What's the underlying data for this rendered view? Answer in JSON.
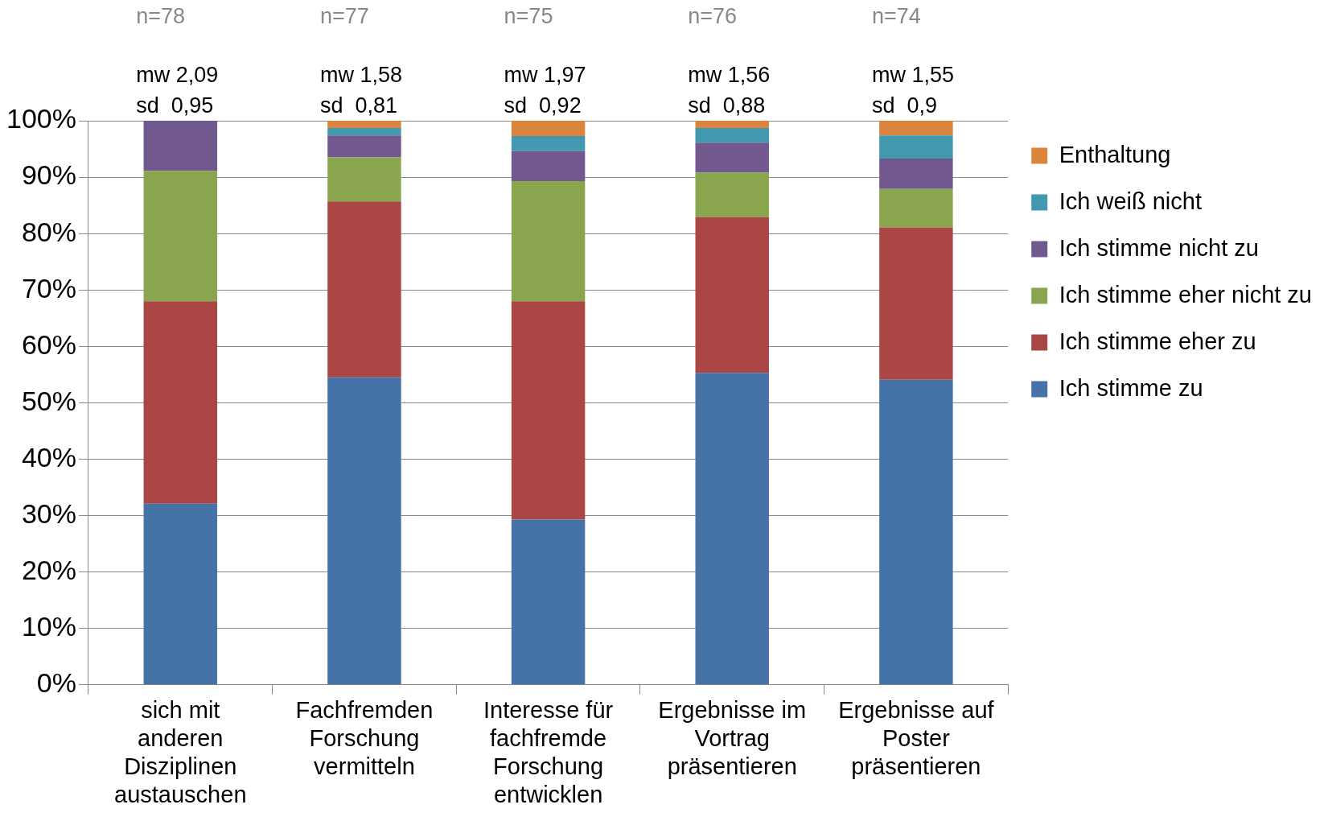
{
  "chart_data": {
    "type": "bar",
    "stacked": true,
    "categories": [
      "sich mit anderen Disziplinen austauschen",
      "Fachfremden Forschung vermitteln",
      "Interesse für fachfremde Forschung entwicklen",
      "Ergebnisse im Vortrag präsentieren",
      "Ergebnisse auf Poster präsentieren"
    ],
    "series": [
      {
        "name": "Ich stimme zu",
        "color": "#4572a7",
        "values": [
          32.1,
          54.5,
          29.3,
          55.3,
          54.1
        ]
      },
      {
        "name": "Ich stimme eher zu",
        "color": "#aa4643",
        "values": [
          35.9,
          31.2,
          38.7,
          27.6,
          27.0
        ]
      },
      {
        "name": "Ich stimme eher nicht zu",
        "color": "#89a54e",
        "values": [
          23.1,
          7.8,
          21.3,
          7.9,
          6.8
        ]
      },
      {
        "name": "Ich stimme nicht zu",
        "color": "#71588f",
        "values": [
          8.9,
          3.9,
          5.3,
          5.3,
          5.4
        ]
      },
      {
        "name": "Ich weiß nicht",
        "color": "#4198af",
        "values": [
          0,
          1.3,
          2.7,
          2.6,
          4.1
        ]
      },
      {
        "name": "Enthaltung",
        "color": "#db843d",
        "values": [
          0,
          1.3,
          2.7,
          1.3,
          2.7
        ]
      }
    ],
    "ylim": [
      0,
      100
    ],
    "yticks": [
      {
        "value": 0,
        "label": "0%"
      },
      {
        "value": 10,
        "label": "10%"
      },
      {
        "value": 20,
        "label": "20%"
      },
      {
        "value": 30,
        "label": "30%"
      },
      {
        "value": 40,
        "label": "40%"
      },
      {
        "value": 50,
        "label": "50%"
      },
      {
        "value": 60,
        "label": "60%"
      },
      {
        "value": 70,
        "label": "70%"
      },
      {
        "value": 80,
        "label": "80%"
      },
      {
        "value": 90,
        "label": "90%"
      },
      {
        "value": 100,
        "label": "100%"
      }
    ],
    "grid": "y",
    "legend": "right",
    "annotations": [
      "n=78",
      "n=77",
      "n=75",
      "n=76",
      "n=74",
      "mw 2,09",
      "mw 1,58",
      "mw 1,97",
      "mw 1,56",
      "mw 1,55",
      "sd  0,95",
      "sd  0,81",
      "sd  0,92",
      "sd  0,88",
      "sd  0,9"
    ]
  }
}
